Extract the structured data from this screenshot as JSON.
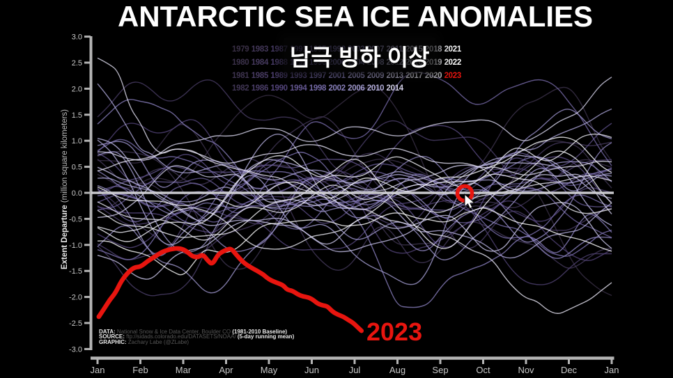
{
  "chart_data": {
    "type": "line",
    "title": "ANTARCTIC SEA ICE ANOMALIES",
    "subtitle_korean": "남극 빙하 이상",
    "ylabel_bold": "Extent Departure ",
    "ylabel_rest": "(million square kilometers)",
    "ylim": [
      -3.0,
      3.0
    ],
    "ytick_labels": [
      "3.0",
      "2.5",
      "2.0",
      "1.5",
      "1.0",
      "0.5",
      "0.0",
      "-0.5",
      "-1.0",
      "-1.5",
      "-2.0",
      "-2.5",
      "-3.0"
    ],
    "xtick_labels": [
      "Jan",
      "Feb",
      "Mar",
      "Apr",
      "May",
      "Jun",
      "Jul",
      "Aug",
      "Sep",
      "Oct",
      "Nov",
      "Dec",
      "Jan"
    ],
    "grid": false,
    "zero_line": 0.0,
    "series_2023": {
      "name": "2023",
      "color": "#e8150f",
      "points_month_value": [
        [
          0.03,
          -2.38
        ],
        [
          0.16,
          -2.22
        ],
        [
          0.29,
          -2.05
        ],
        [
          0.42,
          -1.92
        ],
        [
          0.55,
          -1.7
        ],
        [
          0.7,
          -1.54
        ],
        [
          0.85,
          -1.43
        ],
        [
          1.01,
          -1.42
        ],
        [
          1.17,
          -1.31
        ],
        [
          1.35,
          -1.22
        ],
        [
          1.51,
          -1.13
        ],
        [
          1.71,
          -1.08
        ],
        [
          1.92,
          -1.06
        ],
        [
          2.08,
          -1.12
        ],
        [
          2.21,
          -1.22
        ],
        [
          2.34,
          -1.24
        ],
        [
          2.46,
          -1.18
        ],
        [
          2.57,
          -1.3
        ],
        [
          2.68,
          -1.38
        ],
        [
          2.8,
          -1.2
        ],
        [
          2.89,
          -1.14
        ],
        [
          3.02,
          -1.09
        ],
        [
          3.12,
          -1.07
        ],
        [
          3.25,
          -1.2
        ],
        [
          3.38,
          -1.32
        ],
        [
          3.51,
          -1.4
        ],
        [
          3.66,
          -1.47
        ],
        [
          3.77,
          -1.52
        ],
        [
          3.87,
          -1.57
        ],
        [
          3.98,
          -1.65
        ],
        [
          4.1,
          -1.7
        ],
        [
          4.23,
          -1.74
        ],
        [
          4.34,
          -1.78
        ],
        [
          4.42,
          -1.86
        ],
        [
          4.55,
          -1.88
        ],
        [
          4.67,
          -1.95
        ],
        [
          4.8,
          -1.99
        ],
        [
          4.93,
          -2.01
        ],
        [
          5.04,
          -2.06
        ],
        [
          5.14,
          -2.13
        ],
        [
          5.25,
          -2.16
        ],
        [
          5.37,
          -2.18
        ],
        [
          5.48,
          -2.28
        ],
        [
          5.61,
          -2.34
        ],
        [
          5.74,
          -2.38
        ],
        [
          5.85,
          -2.44
        ],
        [
          5.97,
          -2.5
        ],
        [
          6.07,
          -2.58
        ],
        [
          6.16,
          -2.65
        ]
      ]
    },
    "highlight_marker": {
      "month": 8.57,
      "value": -0.01,
      "shape": "red-ring"
    },
    "background_years": [
      1979,
      1980,
      1981,
      1982,
      1983,
      1984,
      1985,
      1986,
      1987,
      1988,
      1989,
      1990,
      1991,
      1992,
      1993,
      1994,
      1995,
      1996,
      1997,
      1998,
      1999,
      2000,
      2001,
      2002,
      2003,
      2004,
      2005,
      2006,
      2007,
      2008,
      2009,
      2010,
      2011,
      2012,
      2013,
      2014,
      2015,
      2016,
      2017,
      2018,
      2019,
      2020,
      2021,
      2022
    ],
    "featured_anchor_series": {
      "2007": [
        [
          0,
          0.3
        ],
        [
          1,
          0.1
        ],
        [
          2,
          -0.2
        ],
        [
          3,
          0.1
        ],
        [
          4,
          -0.3
        ],
        [
          5,
          -0.1
        ],
        [
          6,
          0.2
        ],
        [
          7,
          0.4
        ],
        [
          8,
          0.2
        ],
        [
          9,
          0.5
        ],
        [
          10,
          0.8
        ],
        [
          11,
          1.2
        ],
        [
          12,
          1.6
        ]
      ],
      "2008": [
        [
          0,
          2.1
        ],
        [
          0.5,
          1.55
        ],
        [
          1,
          0.8
        ],
        [
          2,
          0.35
        ],
        [
          3,
          0.55
        ],
        [
          4,
          0.25
        ],
        [
          5,
          0.45
        ],
        [
          6,
          0.2
        ],
        [
          7,
          0.35
        ],
        [
          8,
          0.1
        ],
        [
          9,
          0.25
        ],
        [
          10,
          0.05
        ],
        [
          11,
          0.2
        ],
        [
          12,
          0.35
        ]
      ],
      "2014": [
        [
          0,
          0.8
        ],
        [
          1,
          0.6
        ],
        [
          2,
          0.95
        ],
        [
          3,
          1.1
        ],
        [
          4,
          1.25
        ],
        [
          5,
          1.0
        ],
        [
          6,
          1.3
        ],
        [
          7,
          1.1
        ],
        [
          8,
          1.35
        ],
        [
          9,
          1.4
        ],
        [
          10,
          1.0
        ],
        [
          11,
          1.45
        ],
        [
          12,
          2.2
        ]
      ],
      "2015": [
        [
          0,
          2.6
        ],
        [
          0.4,
          2.45
        ],
        [
          0.9,
          1.4
        ],
        [
          1.4,
          0.75
        ],
        [
          2,
          0.85
        ],
        [
          3,
          0.55
        ],
        [
          4,
          0.75
        ],
        [
          5,
          0.95
        ],
        [
          6,
          0.7
        ],
        [
          7,
          0.85
        ],
        [
          8,
          0.6
        ],
        [
          9,
          0.5
        ],
        [
          10,
          0.35
        ],
        [
          11,
          0.5
        ],
        [
          12,
          0.6
        ]
      ],
      "2016": [
        [
          0,
          0.45
        ],
        [
          1,
          0.65
        ],
        [
          2,
          0.85
        ],
        [
          3,
          0.5
        ],
        [
          4,
          0.3
        ],
        [
          5,
          0.05
        ],
        [
          6,
          -0.3
        ],
        [
          7,
          -0.55
        ],
        [
          8,
          -0.8
        ],
        [
          9,
          -1.2
        ],
        [
          10,
          -2.0
        ],
        [
          10.7,
          -2.35
        ],
        [
          11.3,
          -2.15
        ],
        [
          12,
          -1.75
        ]
      ],
      "2022": [
        [
          0,
          -0.9
        ],
        [
          1,
          -1.15
        ],
        [
          2,
          -1.6
        ],
        [
          2.5,
          -1.05
        ],
        [
          3,
          -1.15
        ],
        [
          4,
          -0.6
        ],
        [
          5,
          -0.5
        ],
        [
          6,
          -0.65
        ],
        [
          7,
          -0.4
        ],
        [
          8,
          -0.55
        ],
        [
          9,
          -0.3
        ],
        [
          10,
          -0.6
        ],
        [
          11,
          -0.85
        ],
        [
          12,
          -1.1
        ]
      ]
    }
  },
  "legend": {
    "rows": [
      [
        "1979",
        "1983",
        "1987",
        "1991",
        "1995",
        "1999",
        "2003",
        "2007",
        "2011",
        "2015",
        "2018",
        "2021"
      ],
      [
        "1980",
        "1984",
        "1988",
        "1992",
        "1996",
        "2000",
        "2004",
        "2008",
        "2012",
        "2016",
        "2019",
        "2022"
      ],
      [
        "1981",
        "1985",
        "1989",
        "1993",
        "1997",
        "2001",
        "2005",
        "2009",
        "2013",
        "2017",
        "2020",
        "2023"
      ],
      [
        "1982",
        "1986",
        "1990",
        "1994",
        "1998",
        "2002",
        "2006",
        "2010",
        "2014"
      ]
    ],
    "year_colors": {
      "1979": "#3A3046",
      "1980": "#3C324B",
      "1981": "#3F3450",
      "1982": "#413655",
      "1983": "#44385A",
      "1984": "#463A5F",
      "1985": "#493C64",
      "1986": "#4B3E69",
      "1987": "#4E406E",
      "1988": "#504273",
      "1989": "#534478",
      "1990": "#55467D",
      "1991": "#5A4B83",
      "1992": "#5E5089",
      "1993": "#63558F",
      "1994": "#675A95",
      "1995": "#6C5F9B",
      "1996": "#7064A1",
      "1997": "#7569A7",
      "1998": "#796EAD",
      "1999": "#7E73B3",
      "2000": "#8278B9",
      "2001": "#887EBD",
      "2002": "#8D84C1",
      "2003": "#938AC5",
      "2004": "#9890C9",
      "2005": "#9E96CD",
      "2006": "#A39CD1",
      "2007": "#A9A2D5",
      "2008": "#AEA8D9",
      "2009": "#B4AEDD",
      "2010": "#B9B4E1",
      "2011": "#C1BCE4",
      "2012": "#C8C4E7",
      "2013": "#D0CCEA",
      "2014": "#D7D4EC",
      "2015": "#DFDCEF",
      "2016": "#E6E4F2",
      "2017": "#EAE9F4",
      "2018": "#EEEDF6",
      "2019": "#F2F2F8",
      "2020": "#F6F6FA",
      "2021": "#FAFAFC",
      "2022": "#FFFFFF",
      "2023": "#E8150F"
    }
  },
  "footer": {
    "data_label": "DATA:",
    "data_text": " National Snow & Ice Data Center, Boulder CO ",
    "data_bold": "(1981-2010 Baseline)",
    "source_label": "SOURCE:",
    "source_text": " ftp://sidads.colorado.edu/DATASETS/NOAA/ ",
    "source_bold": "(5-day running mean)",
    "graphic_label": "GRAPHIC:",
    "graphic_text": " Zachary Labe (@ZLabe)"
  },
  "colors": {
    "background": "#000000",
    "axis": "#b4b4b4",
    "tick_label": "#c8c8c8",
    "zero_line": "#d2d2d6",
    "red": "#e8150f",
    "footer_dim": "#565656",
    "footer_bright": "#ededed",
    "ylabel": "#d6d6d6"
  }
}
